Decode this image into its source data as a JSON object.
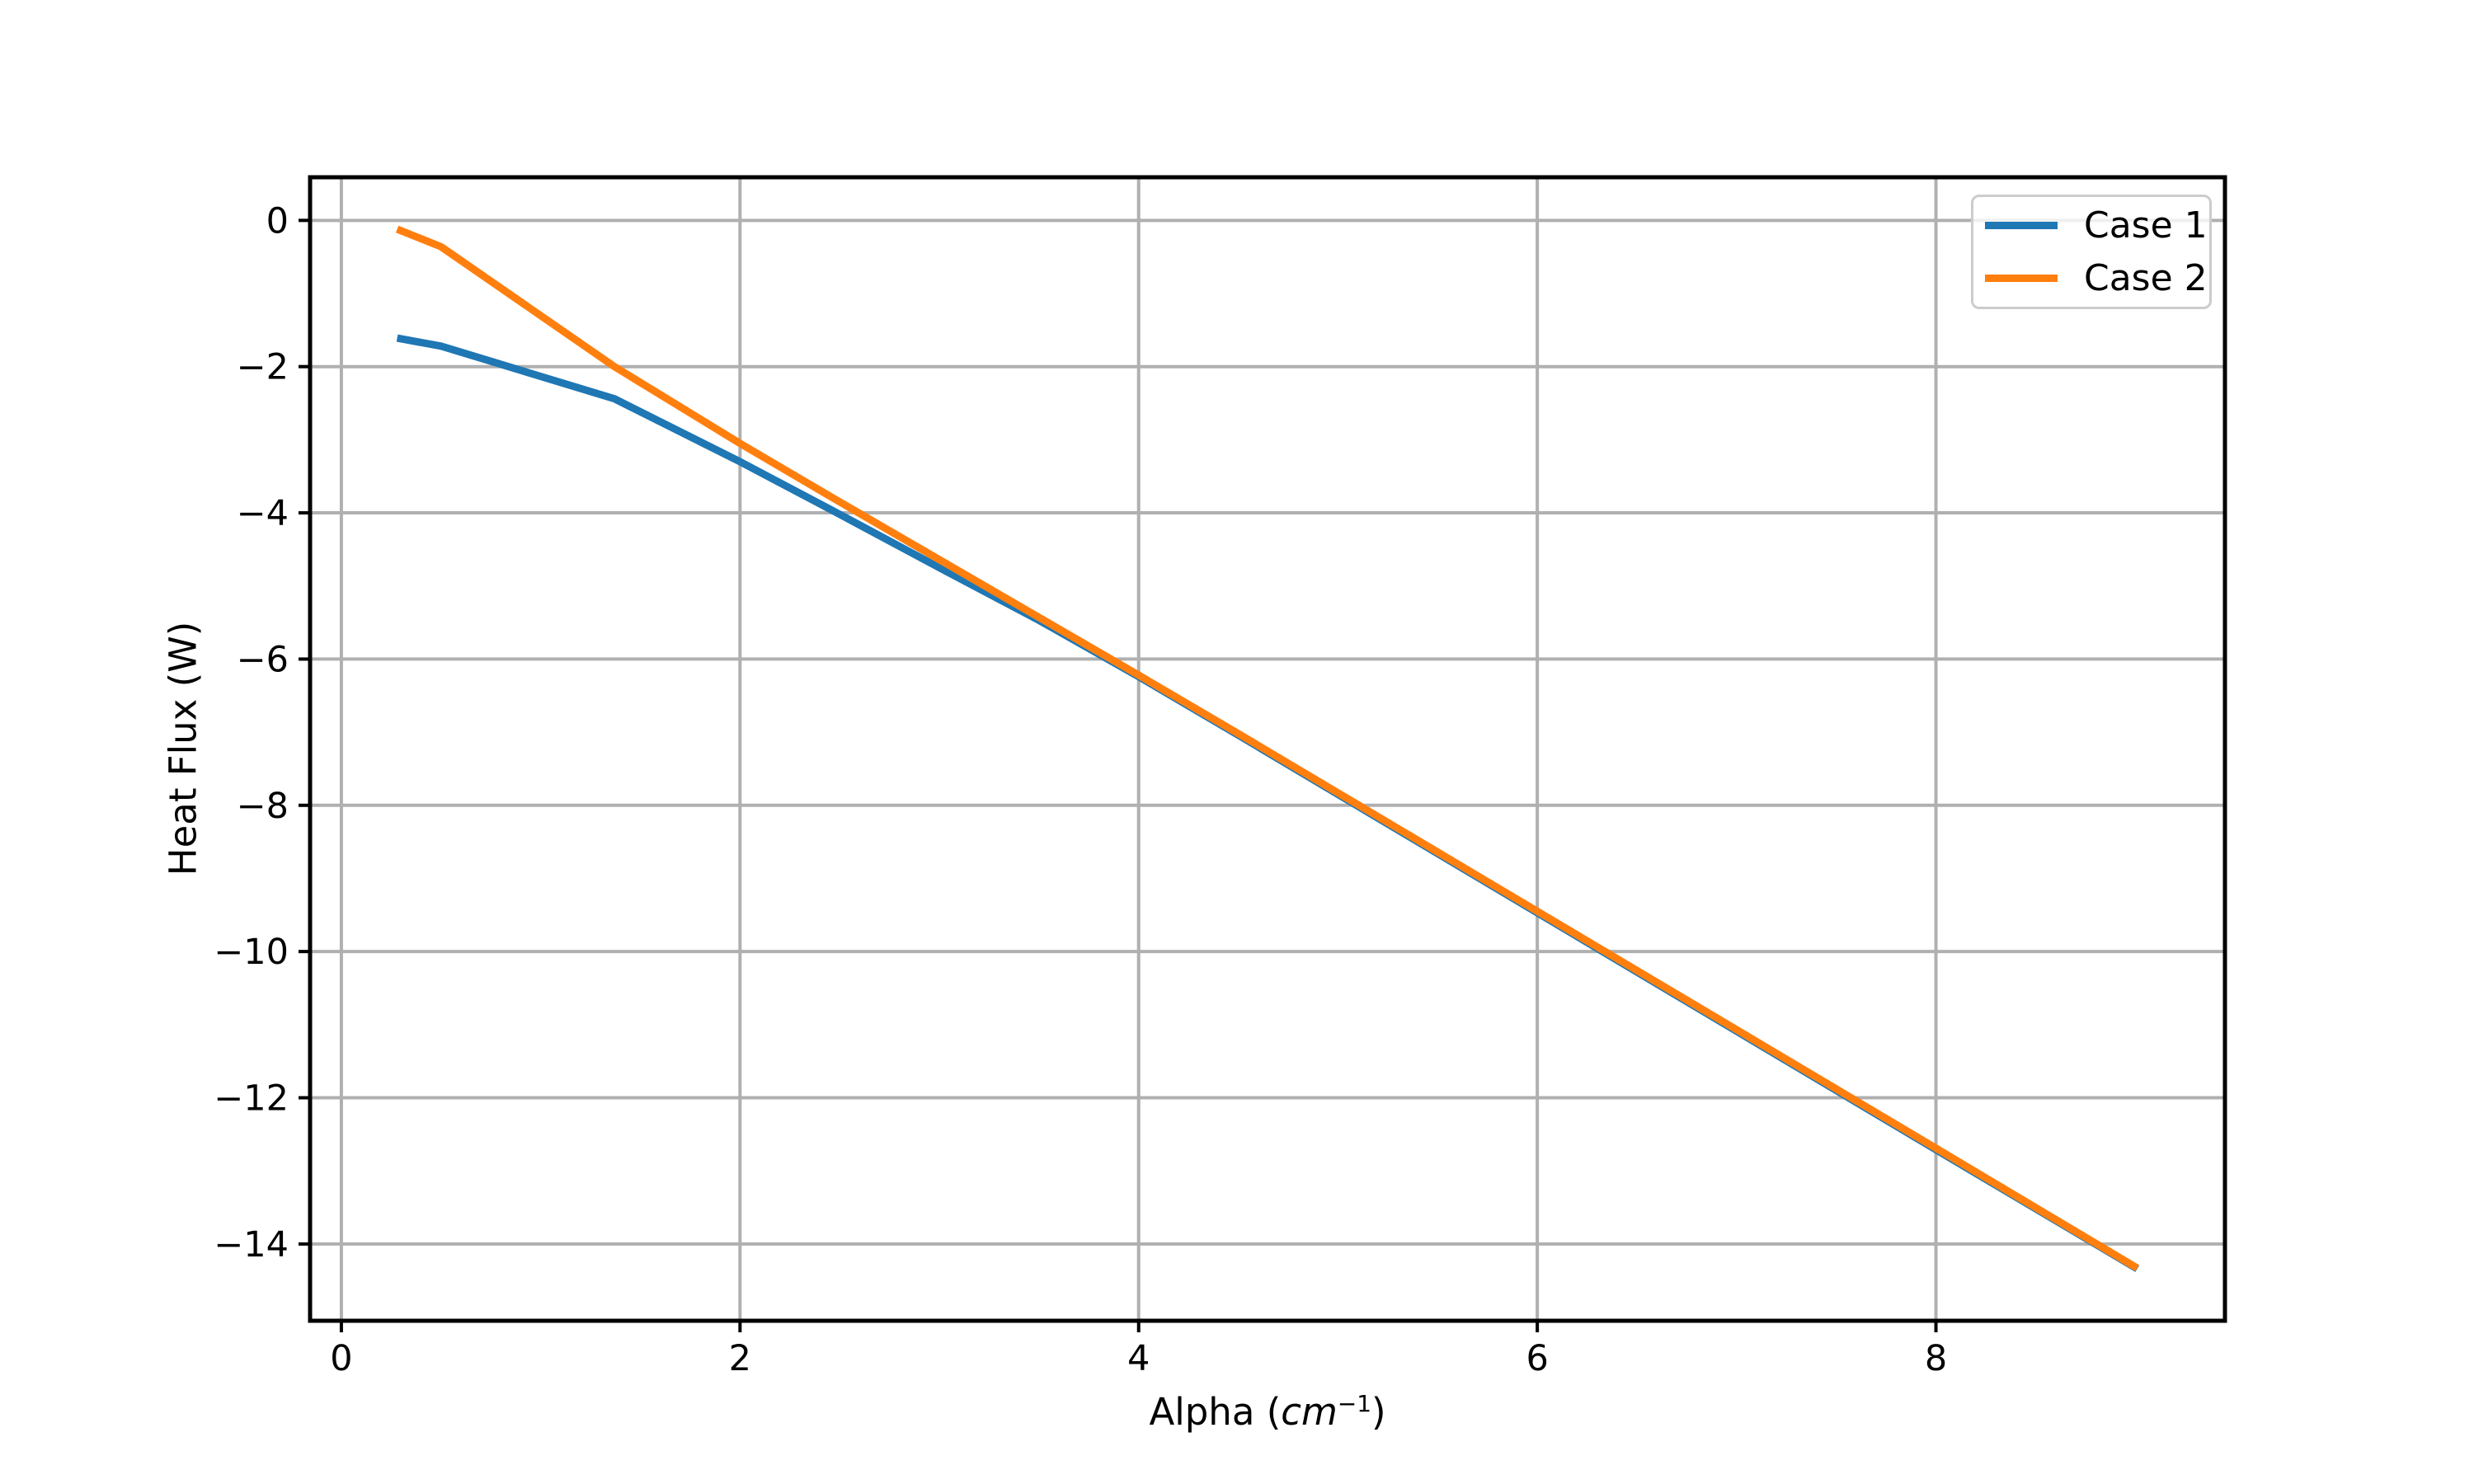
{
  "figure": {
    "background": "#ffffff"
  },
  "axes": {
    "ylabel": "Heat Flux (W)",
    "xlabel_parts": {
      "pre": "Alpha (",
      "var": "cm",
      "sup": "−1",
      "post": ")"
    }
  },
  "colors": {
    "grid": "#b0b0b0",
    "spine": "#000000",
    "tick": "#000000",
    "legend_border": "#cccccc",
    "case1": "#1f77b4",
    "case2": "#ff7f0e"
  },
  "chart_data": {
    "type": "line",
    "title": "",
    "xlabel": "Alpha (cm⁻¹)",
    "ylabel": "Heat Flux (W)",
    "xlim": [
      -0.157,
      9.45
    ],
    "ylim": [
      -15.05,
      0.59
    ],
    "grid": true,
    "legend_position": "upper right",
    "xticks": {
      "values": [
        0,
        2,
        4,
        6,
        8
      ],
      "labels": [
        "0",
        "2",
        "4",
        "6",
        "8"
      ]
    },
    "yticks": {
      "values": [
        0,
        -2,
        -4,
        -6,
        -8,
        -10,
        -12,
        -14
      ],
      "labels": [
        "0",
        "−2",
        "−4",
        "−6",
        "−8",
        "−10",
        "−12",
        "−14"
      ]
    },
    "series": [
      {
        "name": "Case 1",
        "color": "#1f77b4",
        "x": [
          0.28,
          0.5,
          1.37,
          2.0,
          2.5,
          3.0,
          3.5,
          4.0,
          4.5,
          5.0,
          6.0,
          7.0,
          8.0,
          9.01
        ],
        "y": [
          -1.61,
          -1.72,
          -2.44,
          -3.3,
          -4.02,
          -4.75,
          -5.47,
          -6.24,
          -7.04,
          -7.85,
          -9.47,
          -11.09,
          -12.71,
          -14.34
        ]
      },
      {
        "name": "Case 2",
        "color": "#ff7f0e",
        "x": [
          0.28,
          0.5,
          1.37,
          2.0,
          2.5,
          3.0,
          3.5,
          4.0,
          4.5,
          5.0,
          6.0,
          7.0,
          8.0,
          9.01
        ],
        "y": [
          -0.12,
          -0.36,
          -2.0,
          -3.05,
          -3.85,
          -4.64,
          -5.43,
          -6.22,
          -7.02,
          -7.83,
          -9.45,
          -11.07,
          -12.69,
          -14.33
        ]
      }
    ]
  }
}
